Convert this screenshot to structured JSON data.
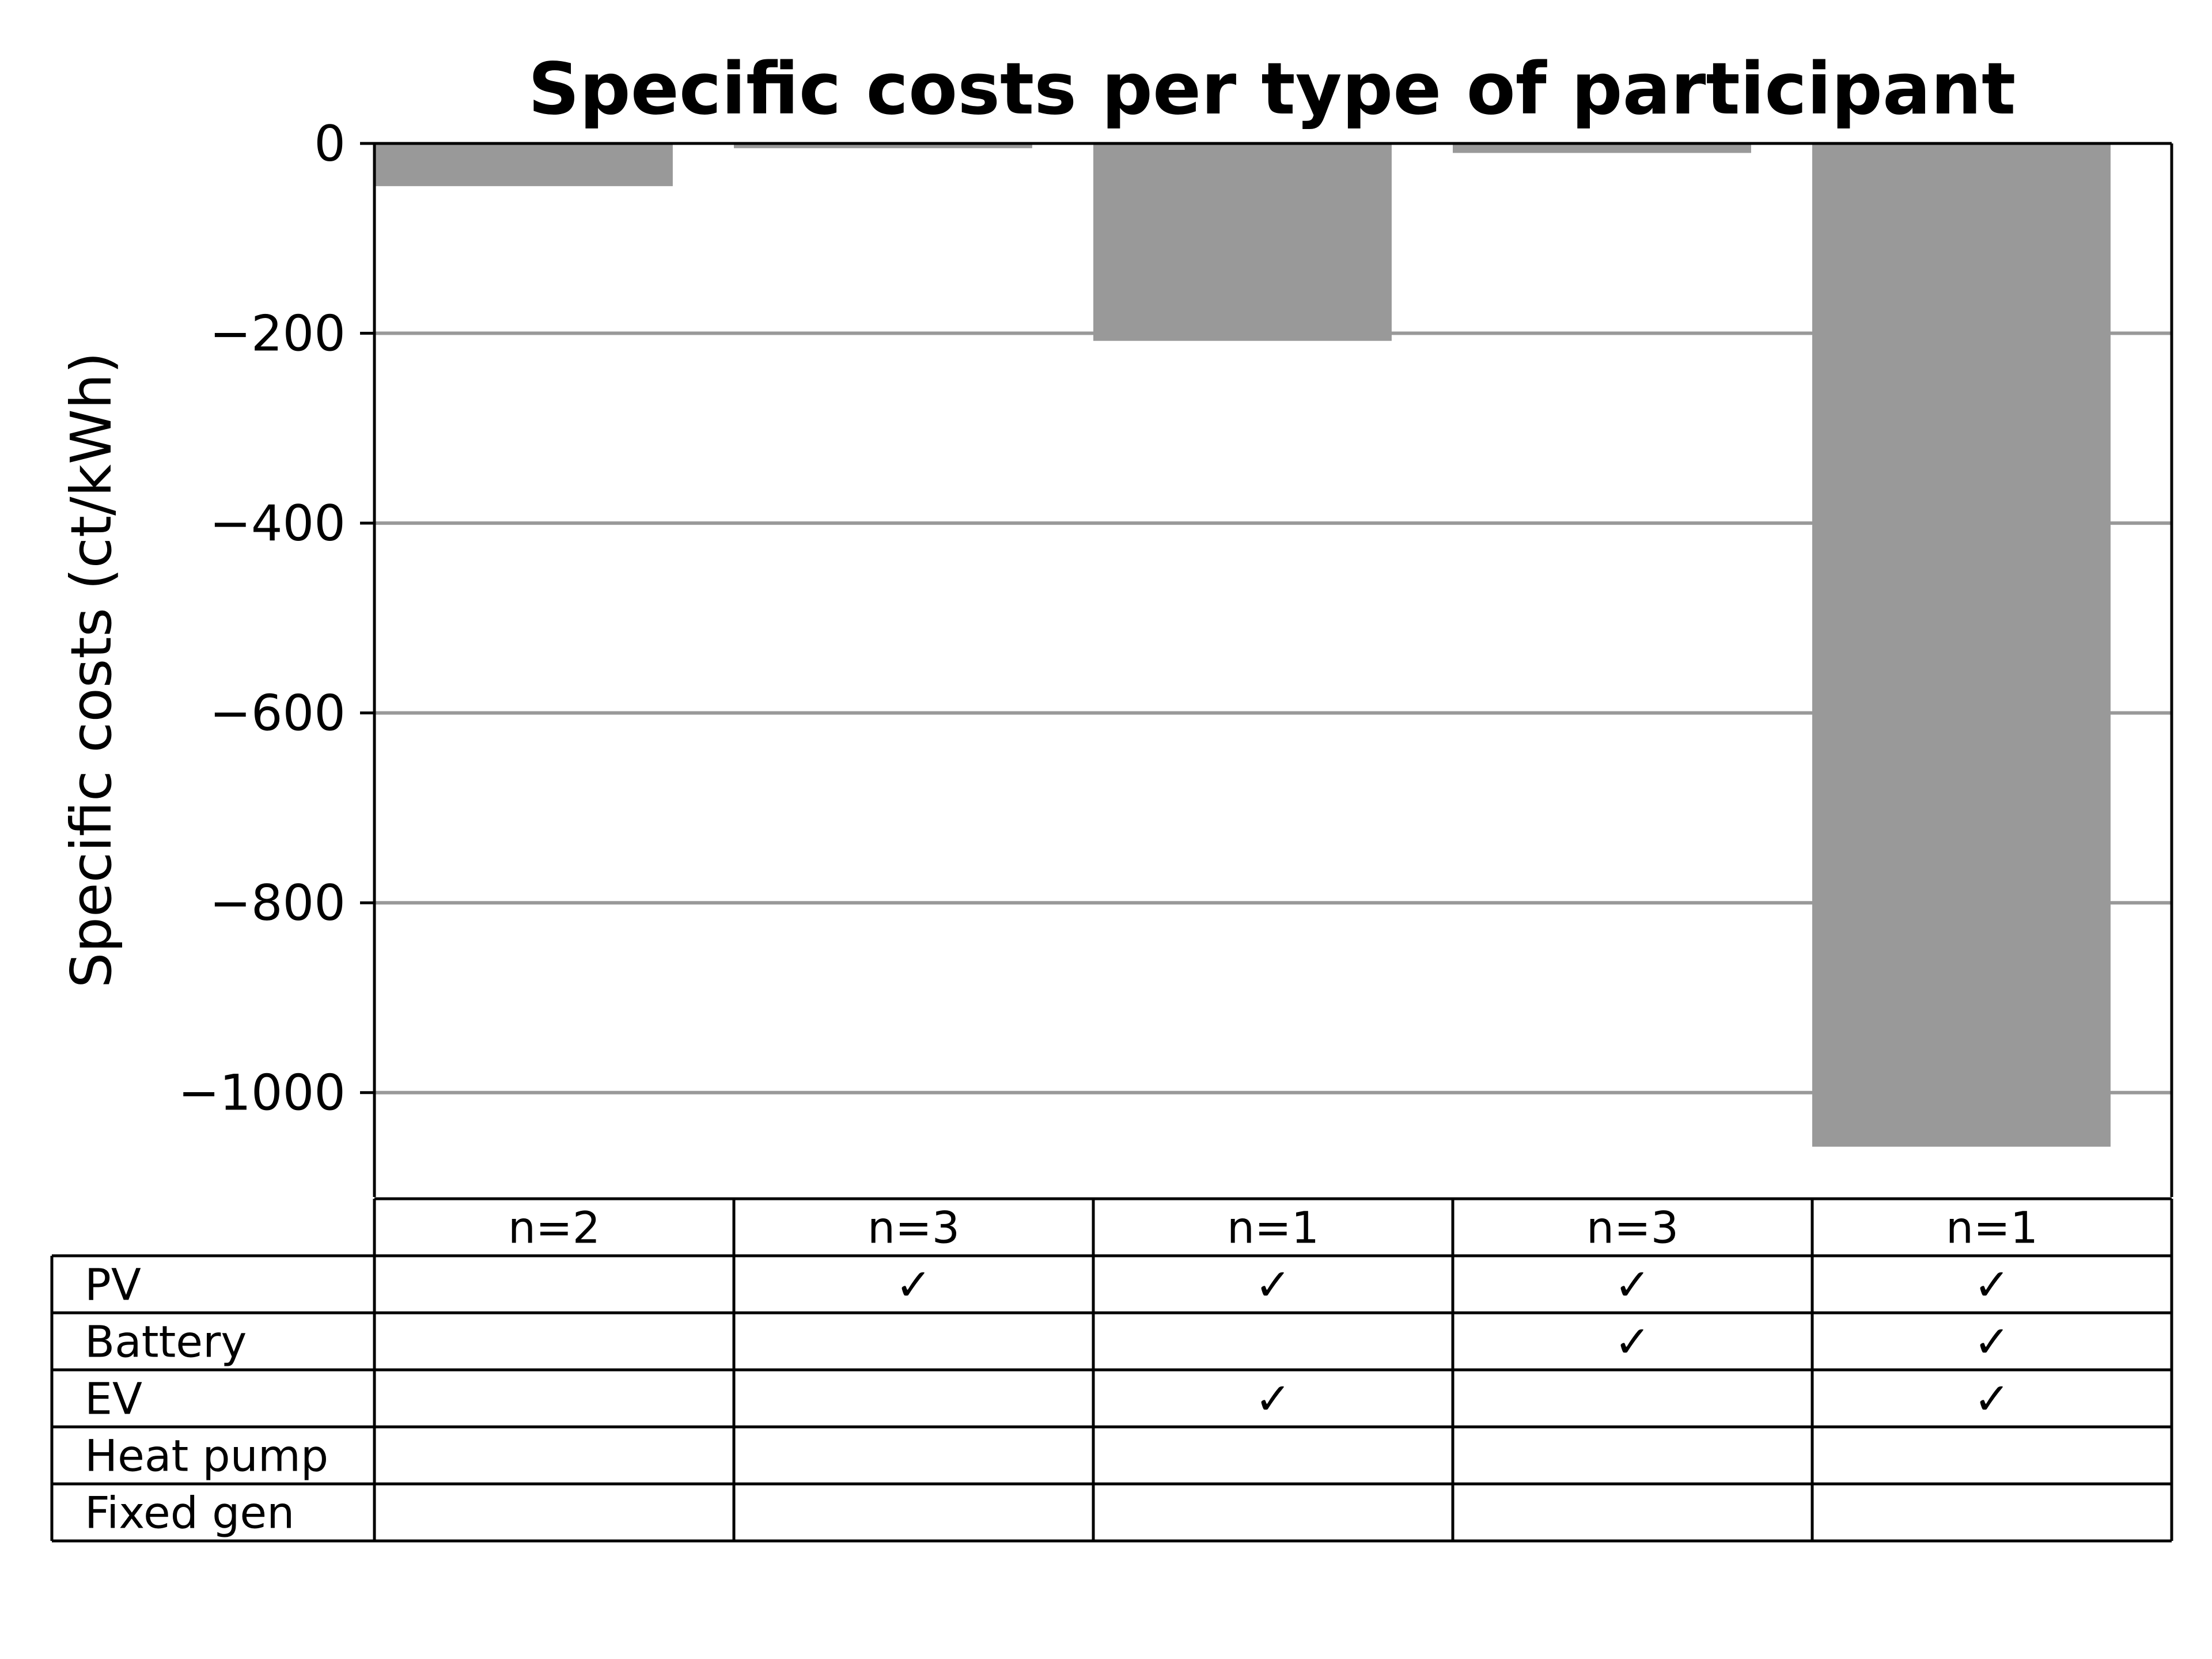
{
  "chart_data": {
    "type": "bar",
    "title": "Specific costs per type of participant",
    "ylabel": "Specific costs (ct/kWh)",
    "xlabel": "",
    "ylim": [
      -1110,
      0
    ],
    "yticks": [
      0,
      -200,
      -400,
      -600,
      -800,
      -1000
    ],
    "ytick_labels": [
      "0",
      "−200",
      "−400",
      "−600",
      "−800",
      "−1000"
    ],
    "grid": true,
    "bar_color": "#999999",
    "grid_color": "#999999",
    "values": [
      -45,
      -5,
      -208,
      -10,
      -1057
    ],
    "table": {
      "columns": [
        "n=2",
        "n=3",
        "n=1",
        "n=3",
        "n=1"
      ],
      "rows": [
        {
          "label": "PV",
          "cells": [
            "",
            "✓",
            "✓",
            "✓",
            "✓"
          ]
        },
        {
          "label": "Battery",
          "cells": [
            "",
            "",
            "",
            "✓",
            "✓"
          ]
        },
        {
          "label": "EV",
          "cells": [
            "",
            "",
            "✓",
            "",
            "✓"
          ]
        },
        {
          "label": "Heat pump",
          "cells": [
            "",
            "",
            "",
            "",
            ""
          ]
        },
        {
          "label": "Fixed gen",
          "cells": [
            "",
            "",
            "",
            "",
            ""
          ]
        }
      ]
    }
  }
}
